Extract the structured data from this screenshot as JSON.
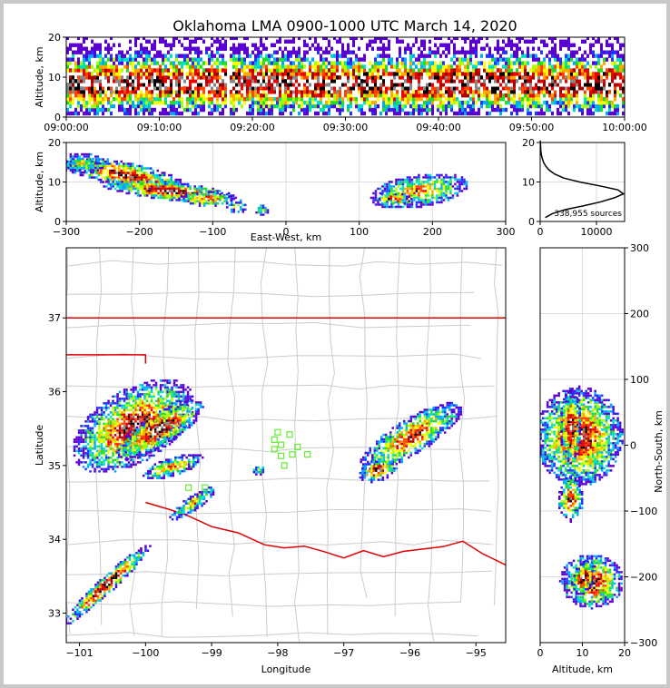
{
  "chart_data": {
    "title": "Oklahoma LMA 0900-1000 UTC March 14, 2020",
    "colormap": [
      "#5a00d2",
      "#2233ff",
      "#00aaff",
      "#00e0c0",
      "#22dd22",
      "#aaff00",
      "#ffff00",
      "#ffaa00",
      "#ff4400",
      "#ee0000",
      "#aa0000",
      "#000000",
      "#888888",
      "#ffffff"
    ],
    "panels": [
      {
        "id": "time_height",
        "type": "heatmap",
        "xlabel": "",
        "ylabel": "Altitude, km",
        "xlim": [
          "09:00:00",
          "10:00:00"
        ],
        "ylim": [
          0,
          20
        ],
        "xticklabels": [
          "09:00:00",
          "09:10:00",
          "09:20:00",
          "09:30:00",
          "09:40:00",
          "09:50:00",
          "10:00:00"
        ],
        "yticks": [
          0,
          10,
          20
        ]
      },
      {
        "id": "ew_altitude",
        "type": "heatmap",
        "xlabel": "East-West, km",
        "ylabel": "Altitude, km",
        "xlim": [
          -300,
          300
        ],
        "ylim": [
          0,
          20
        ],
        "xticks": [
          -300,
          -200,
          -100,
          0,
          100,
          200,
          300
        ],
        "yticks": [
          0,
          10,
          20
        ]
      },
      {
        "id": "altitude_histogram",
        "type": "line",
        "xlim": [
          0,
          15000
        ],
        "ylim": [
          0,
          20
        ],
        "xticks": [
          0,
          10000
        ],
        "yticks": [
          0,
          10,
          20
        ],
        "annotation": "338,955 sources",
        "x": [
          900,
          2200,
          4500,
          7800,
          10800,
          13200,
          14800,
          13800,
          10600,
          7000,
          4200,
          2600,
          1600,
          1000,
          600,
          350,
          200,
          120,
          80,
          50,
          30
        ],
        "y": [
          1,
          2,
          3,
          4,
          5,
          6,
          7,
          8,
          9,
          10,
          11,
          12,
          13,
          14,
          15,
          16,
          17,
          18,
          19,
          20,
          20.5
        ]
      },
      {
        "id": "plan_view",
        "type": "heatmap",
        "xlabel": "Longitude",
        "ylabel": "Latitude",
        "xlim": [
          -101.2,
          -94.55
        ],
        "ylim": [
          32.6,
          37.95
        ],
        "xticks": [
          -101,
          -100,
          -99,
          -98,
          -97,
          -96,
          -95
        ],
        "yticks": [
          33,
          34,
          35,
          36,
          37
        ],
        "stations": [
          [
            -98.0,
            35.45
          ],
          [
            -97.82,
            35.42
          ],
          [
            -98.05,
            35.35
          ],
          [
            -97.95,
            35.28
          ],
          [
            -97.7,
            35.25
          ],
          [
            -98.05,
            35.22
          ],
          [
            -97.78,
            35.15
          ],
          [
            -97.55,
            35.15
          ],
          [
            -97.95,
            35.13
          ],
          [
            -97.9,
            35.0
          ],
          [
            -99.1,
            34.7
          ],
          [
            -99.35,
            34.7
          ]
        ]
      },
      {
        "id": "ns_altitude",
        "type": "heatmap",
        "xlabel": "Altitude, km",
        "ylabel": "North-South, km",
        "xlim": [
          0,
          20
        ],
        "ylim": [
          -300,
          300
        ],
        "xticks": [
          0,
          10,
          20
        ],
        "yticks": [
          -300,
          -200,
          -100,
          0,
          100,
          200,
          300
        ]
      }
    ]
  }
}
